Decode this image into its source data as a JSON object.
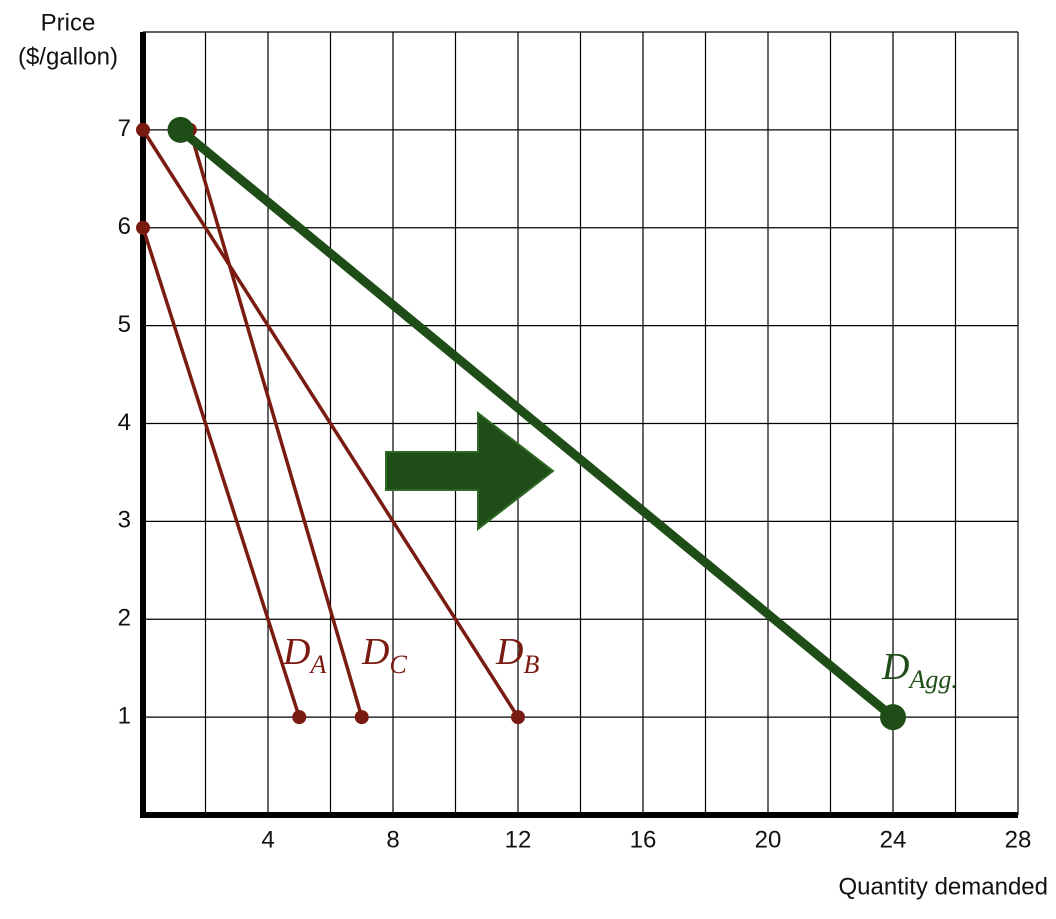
{
  "chart_data": {
    "type": "line",
    "y_label_lines": [
      "Price",
      "($/gallon)"
    ],
    "x_label": "Quantity demanded",
    "xlim": [
      0,
      28
    ],
    "xticks": [
      4,
      8,
      12,
      16,
      20,
      24,
      28
    ],
    "xgrid": [
      2,
      4,
      6,
      8,
      10,
      12,
      14,
      16,
      18,
      20,
      22,
      24,
      26,
      28
    ],
    "ylim": [
      0,
      8
    ],
    "yticks": [
      1,
      2,
      3,
      4,
      5,
      6,
      7
    ],
    "ygrid": [
      1,
      2,
      3,
      4,
      5,
      6,
      7,
      8
    ],
    "series": [
      {
        "name": "D",
        "name_subscript": "A",
        "color": "#7a1b12",
        "x": [
          0,
          5
        ],
        "values": [
          6,
          1
        ]
      },
      {
        "name": "D",
        "name_subscript": "C",
        "color": "#7a1b12",
        "x": [
          1.5,
          7
        ],
        "values": [
          7,
          1
        ]
      },
      {
        "name": "D",
        "name_subscript": "B",
        "color": "#7a1b12",
        "x": [
          0,
          12
        ],
        "values": [
          7,
          1
        ]
      },
      {
        "name": "D",
        "name_subscript": "Agg.",
        "color": "#1f4d17",
        "x": [
          1.2,
          24
        ],
        "values": [
          7,
          1
        ]
      }
    ]
  }
}
